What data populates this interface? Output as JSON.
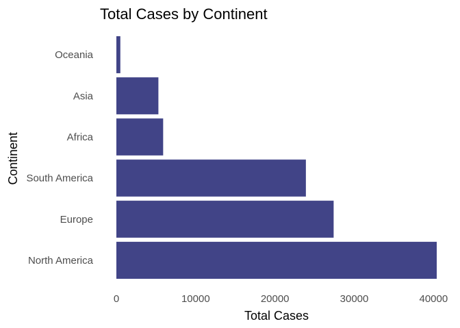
{
  "chart_data": {
    "type": "bar",
    "orientation": "horizontal",
    "title": "Total Cases by Continent",
    "xlabel": "Total Cases",
    "ylabel": "Continent",
    "categories": [
      "North America",
      "Europe",
      "South America",
      "Africa",
      "Asia",
      "Oceania"
    ],
    "values": [
      40400,
      27400,
      23900,
      5900,
      5300,
      500
    ],
    "xlim": [
      0,
      40400
    ],
    "xticks": [
      "0",
      "10000",
      "20000",
      "30000",
      "40000"
    ],
    "grid": false,
    "legend": "none",
    "bar_color": "#414487"
  }
}
